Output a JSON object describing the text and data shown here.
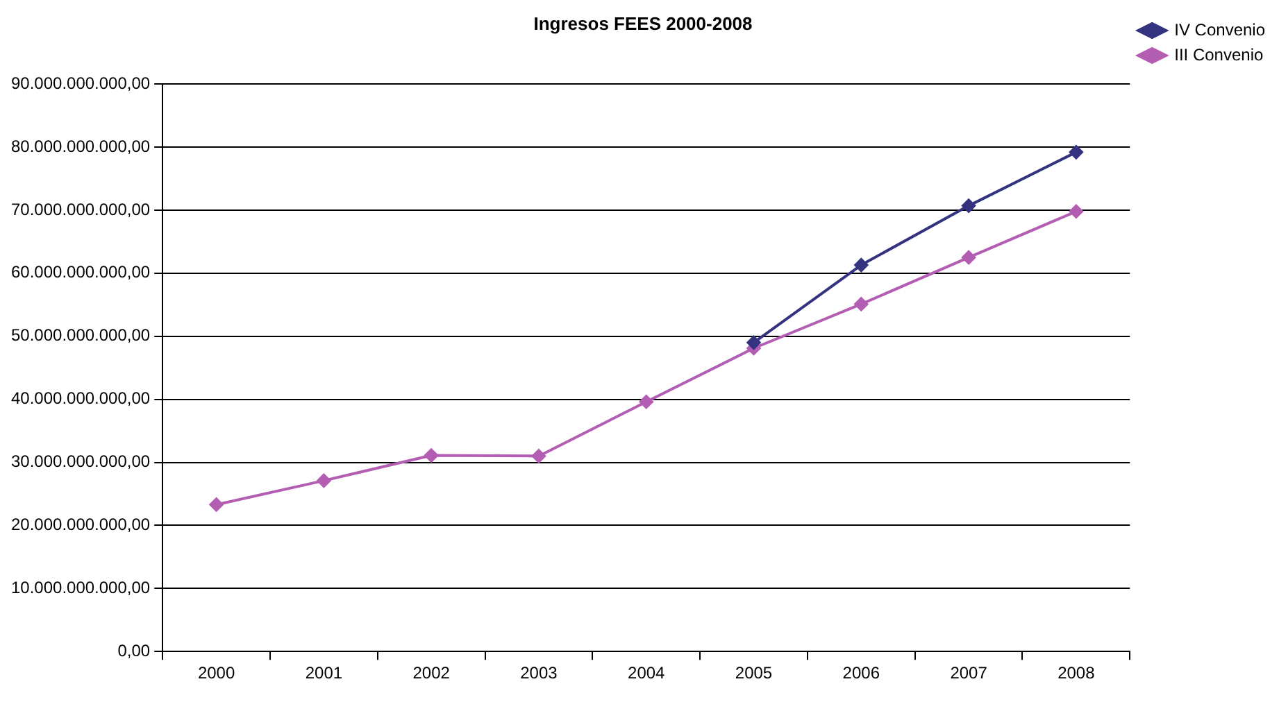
{
  "chart_data": {
    "type": "line",
    "title": "Ingresos FEES 2000-2008",
    "categories": [
      "2000",
      "2001",
      "2002",
      "2003",
      "2004",
      "2005",
      "2006",
      "2007",
      "2008"
    ],
    "series": [
      {
        "name": "IV Convenio",
        "color": "#333380",
        "values": [
          null,
          null,
          null,
          null,
          null,
          49000000000,
          61300000000,
          70700000000,
          79200000000
        ]
      },
      {
        "name": "III Convenio",
        "color": "#b35db3",
        "values": [
          23300000000,
          27100000000,
          31100000000,
          31000000000,
          39600000000,
          48100000000,
          55100000000,
          62500000000,
          69800000000
        ]
      }
    ],
    "ylim": [
      0,
      90000000000
    ],
    "yticks": [
      {
        "value": 0,
        "label": "0,00"
      },
      {
        "value": 10000000000,
        "label": "10.000.000.000,00"
      },
      {
        "value": 20000000000,
        "label": "20.000.000.000,00"
      },
      {
        "value": 30000000000,
        "label": "30.000.000.000,00"
      },
      {
        "value": 40000000000,
        "label": "40.000.000.000,00"
      },
      {
        "value": 50000000000,
        "label": "50.000.000.000,00"
      },
      {
        "value": 60000000000,
        "label": "60.000.000.000,00"
      },
      {
        "value": 70000000000,
        "label": "70.000.000.000,00"
      },
      {
        "value": 80000000000,
        "label": "80.000.000.000,00"
      },
      {
        "value": 90000000000,
        "label": "90.000.000.000,00"
      }
    ],
    "grid": "y",
    "legend": "top right",
    "marker": "diamond",
    "line_style": "solid"
  }
}
